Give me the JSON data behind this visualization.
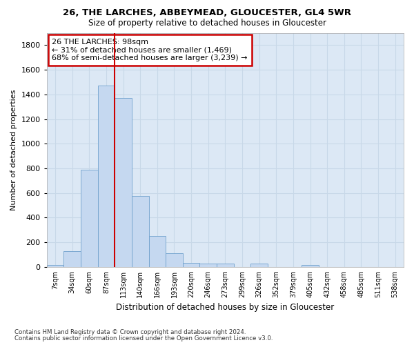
{
  "title1": "26, THE LARCHES, ABBEYMEAD, GLOUCESTER, GL4 5WR",
  "title2": "Size of property relative to detached houses in Gloucester",
  "xlabel": "Distribution of detached houses by size in Gloucester",
  "ylabel": "Number of detached properties",
  "categories": [
    "7sqm",
    "34sqm",
    "60sqm",
    "87sqm",
    "113sqm",
    "140sqm",
    "166sqm",
    "193sqm",
    "220sqm",
    "246sqm",
    "273sqm",
    "299sqm",
    "326sqm",
    "352sqm",
    "379sqm",
    "405sqm",
    "432sqm",
    "458sqm",
    "485sqm",
    "511sqm",
    "538sqm"
  ],
  "values": [
    15,
    130,
    790,
    1470,
    1370,
    575,
    250,
    110,
    35,
    30,
    25,
    0,
    25,
    0,
    0,
    15,
    0,
    0,
    0,
    0,
    0
  ],
  "bar_color": "#c5d8f0",
  "bar_edgecolor": "#6fa0cc",
  "vline_color": "#cc0000",
  "annotation_text": "26 THE LARCHES: 98sqm\n← 31% of detached houses are smaller (1,469)\n68% of semi-detached houses are larger (3,239) →",
  "annotation_box_color": "#cc0000",
  "ylim": [
    0,
    1900
  ],
  "yticks": [
    0,
    200,
    400,
    600,
    800,
    1000,
    1200,
    1400,
    1600,
    1800
  ],
  "grid_color": "#c8d8e8",
  "bg_color": "#dce8f5",
  "footer1": "Contains HM Land Registry data © Crown copyright and database right 2024.",
  "footer2": "Contains public sector information licensed under the Open Government Licence v3.0."
}
